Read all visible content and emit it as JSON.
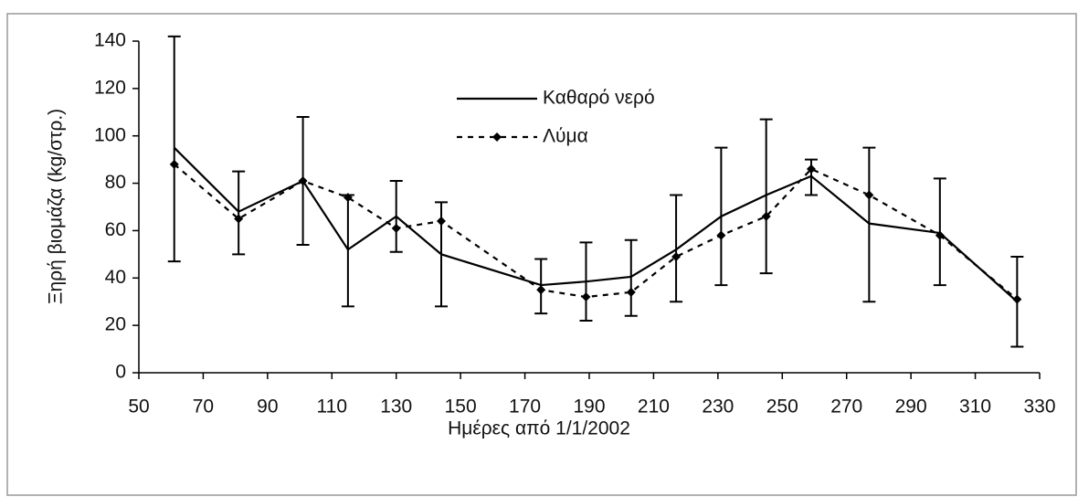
{
  "chart_data": {
    "type": "line",
    "x_label": "Ημέρες από 1/1/2002",
    "y_label": "Ξηρή βιομάζα (kg/στρ.)",
    "x": [
      61,
      81,
      101,
      115,
      130,
      144,
      175,
      189,
      203,
      217,
      231,
      245,
      259,
      277,
      299,
      323
    ],
    "series": [
      {
        "name": "Καθαρό νερό",
        "color": "#000000",
        "line_style": "solid",
        "values": [
          95,
          68,
          81,
          52,
          66,
          50,
          37,
          38.5,
          40.5,
          52,
          66,
          75,
          83,
          63,
          59,
          30
        ],
        "error_low": [
          47,
          50,
          54,
          28,
          51,
          28,
          25,
          22,
          24,
          30,
          37,
          42,
          75,
          30,
          37,
          11
        ],
        "error_high": [
          142,
          85,
          108,
          75,
          81,
          72,
          48,
          55,
          56,
          75,
          95,
          107,
          90,
          95,
          82,
          49
        ]
      },
      {
        "name": "Λύμα",
        "color": "#000000",
        "line_style": "dashed",
        "marker": "diamond",
        "values": [
          88,
          65,
          81,
          74,
          61,
          64,
          35,
          32,
          34,
          49,
          58,
          66,
          86,
          75,
          58,
          31
        ]
      }
    ],
    "xlim": [
      50,
      330
    ],
    "xticks": [
      50,
      70,
      90,
      110,
      130,
      150,
      170,
      190,
      210,
      230,
      250,
      270,
      290,
      310,
      330
    ],
    "ylim": [
      0,
      140
    ],
    "yticks": [
      0,
      20,
      40,
      60,
      80,
      100,
      120,
      140
    ],
    "legend": "upper center"
  }
}
